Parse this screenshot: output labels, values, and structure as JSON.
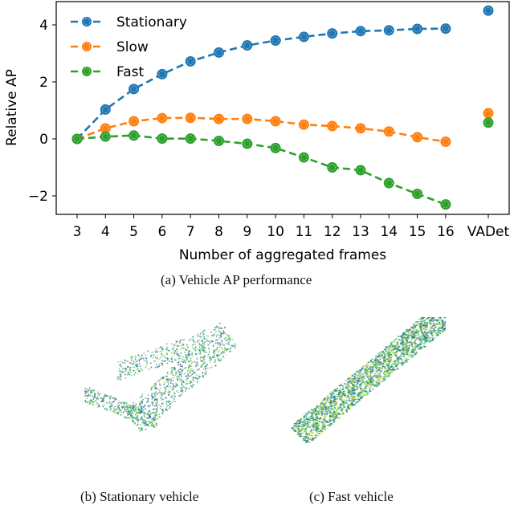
{
  "chart_data": {
    "type": "line",
    "title": "",
    "xlabel": "Number of aggregated frames",
    "ylabel": "Relative AP",
    "categories": [
      "3",
      "4",
      "5",
      "6",
      "7",
      "8",
      "9",
      "10",
      "11",
      "12",
      "13",
      "14",
      "15",
      "16",
      "VADet"
    ],
    "ylim": [
      -2.6,
      4.8
    ],
    "yticks": [
      -2,
      0,
      2,
      4
    ],
    "ytick_labels": [
      "−2",
      "0",
      "2",
      "4"
    ],
    "grid": false,
    "legend_position": "upper left",
    "series": [
      {
        "name": "Stationary",
        "color": "#1f77b4",
        "values": [
          0,
          1.03,
          1.75,
          2.27,
          2.72,
          3.03,
          3.28,
          3.45,
          3.58,
          3.7,
          3.78,
          3.81,
          3.86,
          3.87,
          4.5
        ]
      },
      {
        "name": "Slow",
        "color": "#ff7f0e",
        "values": [
          0,
          0.37,
          0.62,
          0.73,
          0.74,
          0.7,
          0.7,
          0.62,
          0.5,
          0.45,
          0.37,
          0.26,
          0.06,
          -0.1,
          0.9
        ]
      },
      {
        "name": "Fast",
        "color": "#2ca02c",
        "values": [
          0,
          0.08,
          0.12,
          0.01,
          0.01,
          -0.07,
          -0.17,
          -0.32,
          -0.65,
          -1.0,
          -1.1,
          -1.55,
          -1.93,
          -2.3,
          0.57
        ]
      }
    ],
    "note": "VADet point is plotted as standalone marker, not connected by dashed line"
  },
  "captions": {
    "a": "(a) Vehicle AP performance",
    "b": "(b) Stationary vehicle",
    "c": "(c) Fast vehicle"
  }
}
